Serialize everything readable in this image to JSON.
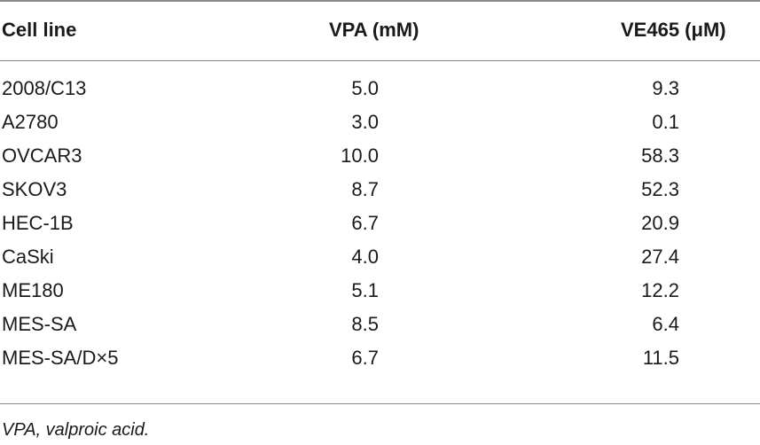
{
  "table": {
    "headers": [
      "Cell line",
      "VPA (mM)",
      "VE465 (μM)"
    ],
    "rows": [
      {
        "cell_line": "2008/C13",
        "vpa": "5.0",
        "ve465": "9.3"
      },
      {
        "cell_line": "A2780",
        "vpa": "3.0",
        "ve465": "0.1"
      },
      {
        "cell_line": "OVCAR3",
        "vpa": "10.0",
        "ve465": "58.3"
      },
      {
        "cell_line": "SKOV3",
        "vpa": "8.7",
        "ve465": "52.3"
      },
      {
        "cell_line": "HEC-1B",
        "vpa": "6.7",
        "ve465": "20.9"
      },
      {
        "cell_line": "CaSki",
        "vpa": "4.0",
        "ve465": "27.4"
      },
      {
        "cell_line": "ME180",
        "vpa": "5.1",
        "ve465": "12.2"
      },
      {
        "cell_line": "MES-SA",
        "vpa": "8.5",
        "ve465": "6.4"
      },
      {
        "cell_line": "MES-SA/D×5",
        "vpa": "6.7",
        "ve465": "11.5"
      }
    ]
  },
  "footnote": "VPA, valproic acid."
}
